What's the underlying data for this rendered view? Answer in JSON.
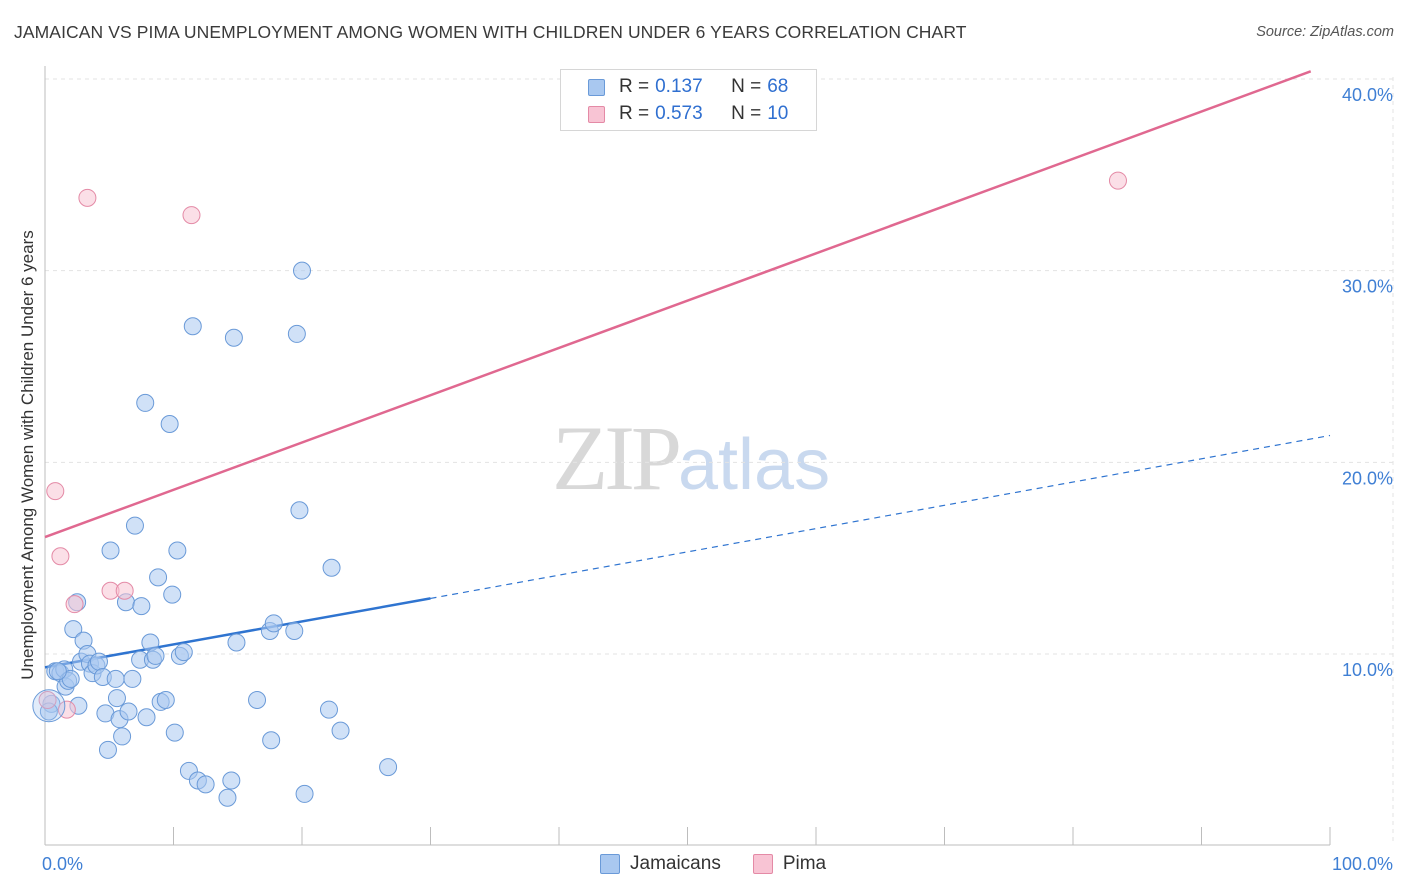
{
  "header": {
    "title": "JAMAICAN VS PIMA UNEMPLOYMENT AMONG WOMEN WITH CHILDREN UNDER 6 YEARS CORRELATION CHART",
    "source": "Source: ZipAtlas.com"
  },
  "watermark": {
    "zip": "ZIP",
    "atlas": "atlas"
  },
  "legend_stats": [
    {
      "r_label": "R =",
      "r_value": "0.137",
      "n_label": "N =",
      "n_value": "68",
      "color": "#a9c8f0",
      "border": "#6a9ad8"
    },
    {
      "r_label": "R =",
      "r_value": "0.573",
      "n_label": "N =",
      "n_value": "10",
      "color": "#f8c4d4",
      "border": "#e48aa6"
    }
  ],
  "legend_bottom": [
    {
      "label": "Jamaicans",
      "color": "#a9c8f0",
      "border": "#6a9ad8"
    },
    {
      "label": "Pima",
      "color": "#f8c4d4",
      "border": "#e48aa6"
    }
  ],
  "chart_data": {
    "type": "scatter",
    "title": "JAMAICAN VS PIMA UNEMPLOYMENT AMONG WOMEN WITH CHILDREN UNDER 6 YEARS CORRELATION CHART",
    "ylabel": "Unemployment Among Women with Children Under 6 years",
    "xlabel": "",
    "xlim": [
      0,
      100
    ],
    "ylim": [
      0,
      41
    ],
    "x_tick_labels": [
      {
        "value": 0,
        "label": "0.0%"
      },
      {
        "value": 100,
        "label": "100.0%"
      }
    ],
    "y_tick_labels": [
      {
        "value": 10,
        "label": "10.0%"
      },
      {
        "value": 20,
        "label": "20.0%"
      },
      {
        "value": 30,
        "label": "30.0%"
      },
      {
        "value": 40,
        "label": "40.0%"
      }
    ],
    "series": [
      {
        "name": "Jamaicans",
        "color": "#a9c8f0",
        "stroke": "#6a9ad8",
        "trend_color": "#2f74d0",
        "trend": {
          "x_start": 0,
          "y_start": 9.3,
          "x_solid_end": 30,
          "y_solid_end": 12.9,
          "x_end": 100,
          "y_end": 21.4
        },
        "points": [
          [
            0.5,
            7.4
          ],
          [
            0.8,
            9.1
          ],
          [
            1.2,
            9.0
          ],
          [
            1.5,
            9.2
          ],
          [
            1.6,
            8.3
          ],
          [
            1.8,
            8.6
          ],
          [
            2.0,
            8.7
          ],
          [
            2.2,
            11.3
          ],
          [
            2.5,
            12.7
          ],
          [
            2.6,
            7.3
          ],
          [
            2.8,
            9.6
          ],
          [
            3.0,
            10.7
          ],
          [
            3.3,
            10.0
          ],
          [
            3.5,
            9.5
          ],
          [
            3.7,
            9.0
          ],
          [
            4.0,
            9.4
          ],
          [
            4.2,
            9.6
          ],
          [
            4.5,
            8.8
          ],
          [
            4.7,
            6.9
          ],
          [
            4.9,
            5.0
          ],
          [
            5.1,
            15.4
          ],
          [
            5.5,
            8.7
          ],
          [
            5.6,
            7.7
          ],
          [
            5.8,
            6.6
          ],
          [
            6.0,
            5.7
          ],
          [
            6.3,
            12.7
          ],
          [
            6.5,
            7.0
          ],
          [
            6.8,
            8.7
          ],
          [
            7.0,
            16.7
          ],
          [
            7.4,
            9.7
          ],
          [
            7.5,
            12.5
          ],
          [
            7.8,
            23.1
          ],
          [
            7.9,
            6.7
          ],
          [
            8.2,
            10.6
          ],
          [
            8.4,
            9.7
          ],
          [
            8.6,
            9.9
          ],
          [
            8.8,
            14.0
          ],
          [
            9.0,
            7.5
          ],
          [
            9.4,
            7.6
          ],
          [
            9.7,
            22.0
          ],
          [
            9.9,
            13.1
          ],
          [
            10.1,
            5.9
          ],
          [
            10.3,
            15.4
          ],
          [
            10.5,
            9.9
          ],
          [
            10.8,
            10.1
          ],
          [
            11.2,
            3.9
          ],
          [
            11.5,
            27.1
          ],
          [
            11.9,
            3.4
          ],
          [
            12.5,
            3.2
          ],
          [
            14.2,
            2.5
          ],
          [
            14.5,
            3.4
          ],
          [
            14.7,
            26.5
          ],
          [
            14.9,
            10.6
          ],
          [
            16.5,
            7.6
          ],
          [
            17.5,
            11.2
          ],
          [
            17.6,
            5.5
          ],
          [
            17.8,
            11.6
          ],
          [
            19.4,
            11.2
          ],
          [
            19.6,
            26.7
          ],
          [
            19.8,
            17.5
          ],
          [
            20.0,
            30.0
          ],
          [
            20.2,
            2.7
          ],
          [
            22.1,
            7.1
          ],
          [
            22.3,
            14.5
          ],
          [
            23.0,
            6.0
          ],
          [
            26.7,
            4.1
          ],
          [
            0.3,
            7.0
          ],
          [
            1.0,
            9.1
          ]
        ]
      },
      {
        "name": "Pima",
        "color": "#f8c4d4",
        "stroke": "#e48aa6",
        "trend_color": "#e06890",
        "trend": {
          "x_start": 0,
          "y_start": 16.1,
          "x_end": 98.5,
          "y_end": 40.4
        },
        "points": [
          [
            0.2,
            7.6
          ],
          [
            0.8,
            18.5
          ],
          [
            1.2,
            15.1
          ],
          [
            1.7,
            7.1
          ],
          [
            2.3,
            12.6
          ],
          [
            3.3,
            33.8
          ],
          [
            5.1,
            13.3
          ],
          [
            6.2,
            13.3
          ],
          [
            11.4,
            32.9
          ],
          [
            83.5,
            34.7
          ]
        ]
      }
    ]
  }
}
